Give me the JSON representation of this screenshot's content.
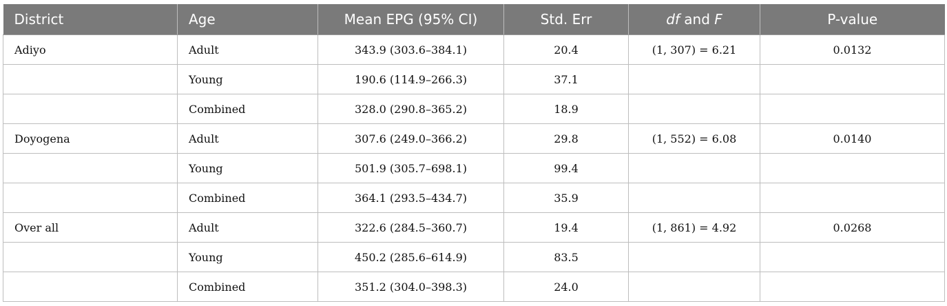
{
  "table": {
    "headers": {
      "district": "District",
      "age": "Age",
      "mean_epg": "Mean EPG (95% CI)",
      "std_err": "Std. Err",
      "df_part": "df",
      "and_word": "and",
      "f_part": "F",
      "p_value": "P-value"
    },
    "rows": [
      {
        "district": "Adiyo",
        "age": "Adult",
        "mean": "343.9 (303.6–384.1)",
        "se": "20.4",
        "dff": "(1, 307) = 6.21",
        "p": "0.0132"
      },
      {
        "district": "",
        "age": "Young",
        "mean": "190.6 (114.9–266.3)",
        "se": "37.1",
        "dff": "",
        "p": ""
      },
      {
        "district": "",
        "age": "Combined",
        "mean": "328.0 (290.8–365.2)",
        "se": "18.9",
        "dff": "",
        "p": ""
      },
      {
        "district": "Doyogena",
        "age": "Adult",
        "mean": "307.6 (249.0–366.2)",
        "se": "29.8",
        "dff": "(1, 552) = 6.08",
        "p": "0.0140"
      },
      {
        "district": "",
        "age": "Young",
        "mean": "501.9 (305.7–698.1)",
        "se": "99.4",
        "dff": "",
        "p": ""
      },
      {
        "district": "",
        "age": "Combined",
        "mean": "364.1 (293.5–434.7)",
        "se": "35.9",
        "dff": "",
        "p": ""
      },
      {
        "district": "Over all",
        "age": "Adult",
        "mean": "322.6 (284.5–360.7)",
        "se": "19.4",
        "dff": "(1, 861) = 4.92",
        "p": "0.0268"
      },
      {
        "district": "",
        "age": "Young",
        "mean": "450.2 (285.6–614.9)",
        "se": "83.5",
        "dff": "",
        "p": ""
      },
      {
        "district": "",
        "age": "Combined",
        "mean": "351.2 (304.0–398.3)",
        "se": "24.0",
        "dff": "",
        "p": ""
      }
    ]
  }
}
